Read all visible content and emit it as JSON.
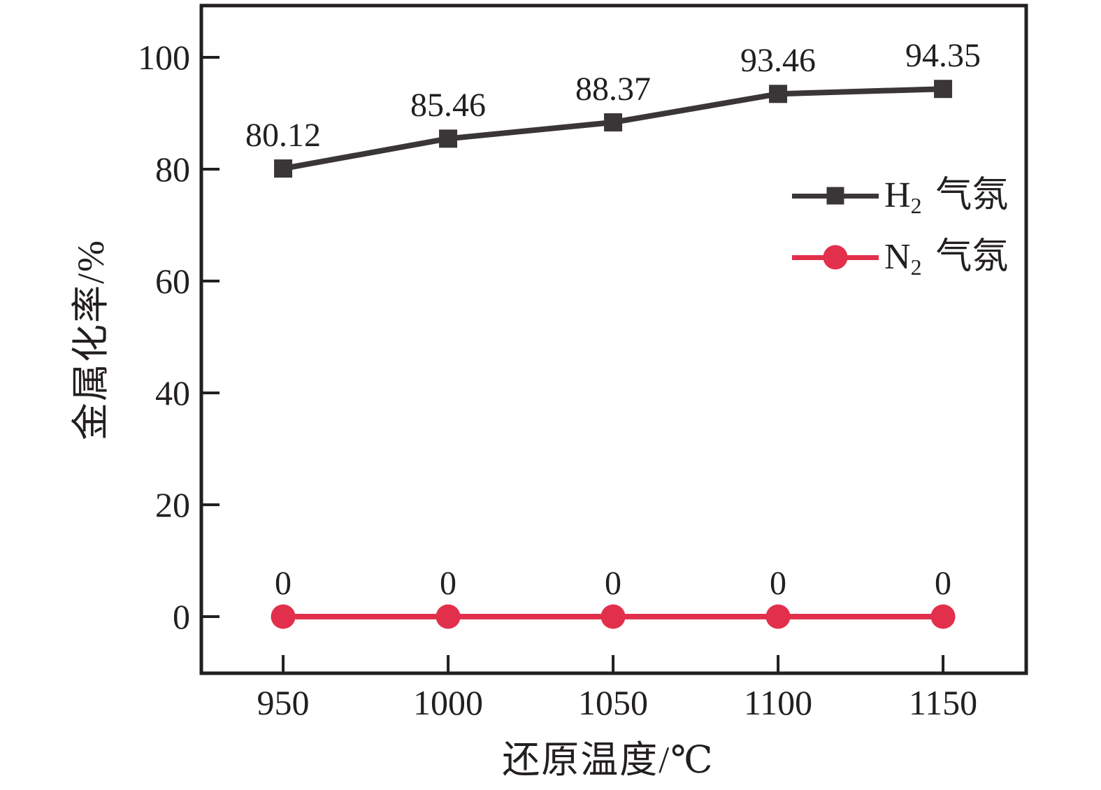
{
  "figure": {
    "background": "#ffffff",
    "axis_color": "#231f20",
    "text_color": "#231f20"
  },
  "chart_data": {
    "type": "line",
    "title": "",
    "xlabel": "还原温度/℃",
    "ylabel": "金属化率/%",
    "x": [
      950,
      1000,
      1050,
      1100,
      1150
    ],
    "xticks": [
      950,
      1000,
      1050,
      1100,
      1150
    ],
    "yticks": [
      0,
      20,
      40,
      60,
      80,
      100
    ],
    "xlim": [
      925.2,
      1175.2
    ],
    "ylim": [
      -10.125,
      109.25
    ],
    "grid": false,
    "legend_position": "inside-upper-right",
    "series": [
      {
        "name": "H2 气氛",
        "label_main": "H",
        "label_sub": "2",
        "label_rest": "气氛",
        "marker": "square",
        "color": "#3a3637",
        "values": [
          80.12,
          85.46,
          88.37,
          93.46,
          94.35
        ],
        "point_labels": [
          "80.12",
          "85.46",
          "88.37",
          "93.46",
          "94.35"
        ]
      },
      {
        "name": "N2 气氛",
        "label_main": "N",
        "label_sub": "2",
        "label_rest": "气氛",
        "marker": "circle",
        "color": "#e2304c",
        "values": [
          0,
          0,
          0,
          0,
          0
        ],
        "point_labels": [
          "0",
          "0",
          "0",
          "0",
          "0"
        ]
      }
    ]
  }
}
